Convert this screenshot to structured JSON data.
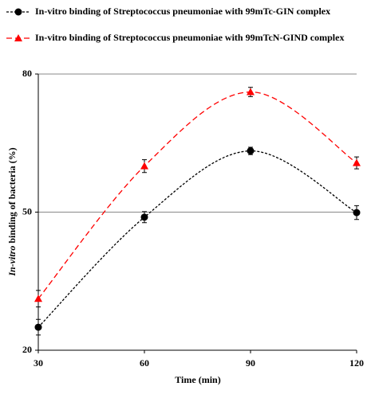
{
  "chart_data": {
    "type": "line",
    "ylabel": [
      "In-vitro",
      "binding of bacteria (%)"
    ],
    "xlabel": "Time (min)",
    "x": [
      30,
      60,
      90,
      120
    ],
    "series": [
      {
        "name": "In-vitro binding of   Streptococcus pneumoniae with 99mTc-GIN complex",
        "color": "#000000",
        "marker": "circle",
        "values": [
          25.0,
          48.9,
          63.3,
          49.9
        ],
        "errors": [
          1.7,
          1.2,
          0.8,
          1.5
        ]
      },
      {
        "name": "In-vitro binding of   Streptococcus pneumoniae with 99mTcN-GIND complex",
        "color": "#ff0000",
        "marker": "triangle",
        "values": [
          31.2,
          60.0,
          76.1,
          60.7
        ],
        "errors": [
          1.8,
          1.4,
          1.0,
          1.3
        ]
      }
    ],
    "xlim": [
      30,
      120
    ],
    "xticks": [
      30,
      60,
      90,
      120
    ],
    "ylim": [
      20,
      80
    ],
    "yticks": [
      20,
      50,
      80
    ],
    "grid": true
  }
}
